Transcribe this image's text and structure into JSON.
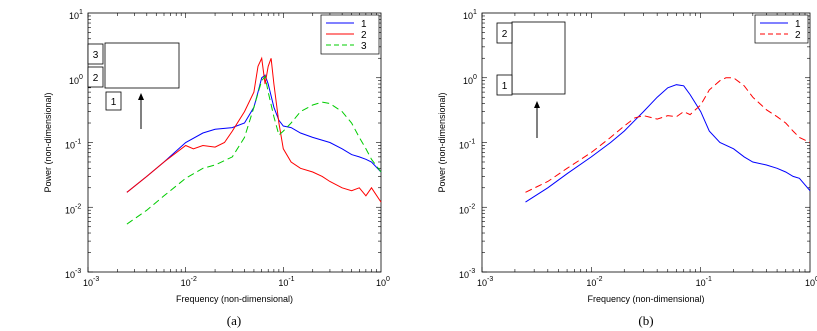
{
  "chart_data": [
    {
      "type": "line",
      "panel_label": "(a)",
      "xlabel": "Frequency (non-dimensional)",
      "ylabel": "Power (non-dimensional)",
      "xscale": "log",
      "yscale": "log",
      "xlim": [
        0.001,
        1
      ],
      "ylim": [
        0.001,
        10
      ],
      "x_ticks": [
        "10",
        "10",
        "10",
        "10"
      ],
      "x_tick_exponents": [
        "-3",
        "-2",
        "-1",
        "0"
      ],
      "y_ticks": [
        "10",
        "10",
        "10",
        "10",
        "10"
      ],
      "y_tick_exponents": [
        "-3",
        "-2",
        "-1",
        "0",
        "1"
      ],
      "legend_position": "top-right",
      "series": [
        {
          "name": "1",
          "color": "#0000ff",
          "style": "solid",
          "x": [
            0.0025,
            0.004,
            0.006,
            0.01,
            0.015,
            0.02,
            0.03,
            0.04,
            0.05,
            0.055,
            0.06,
            0.065,
            0.07,
            0.08,
            0.09,
            0.1,
            0.12,
            0.15,
            0.2,
            0.3,
            0.4,
            0.5,
            0.6,
            0.7,
            0.8,
            1.0
          ],
          "y": [
            0.017,
            0.03,
            0.05,
            0.1,
            0.14,
            0.16,
            0.17,
            0.2,
            0.35,
            0.6,
            1.0,
            1.1,
            0.8,
            0.35,
            0.22,
            0.18,
            0.17,
            0.14,
            0.12,
            0.1,
            0.08,
            0.065,
            0.06,
            0.055,
            0.05,
            0.035
          ]
        },
        {
          "name": "2",
          "color": "#ff0000",
          "style": "solid",
          "x": [
            0.0025,
            0.004,
            0.006,
            0.01,
            0.012,
            0.015,
            0.02,
            0.025,
            0.03,
            0.04,
            0.05,
            0.055,
            0.06,
            0.065,
            0.07,
            0.075,
            0.08,
            0.09,
            0.1,
            0.12,
            0.15,
            0.2,
            0.25,
            0.3,
            0.4,
            0.5,
            0.6,
            0.7,
            0.8,
            1.0
          ],
          "y": [
            0.017,
            0.03,
            0.05,
            0.09,
            0.08,
            0.09,
            0.085,
            0.1,
            0.15,
            0.3,
            0.6,
            1.5,
            2.0,
            0.8,
            1.5,
            2.0,
            0.8,
            0.2,
            0.08,
            0.05,
            0.04,
            0.035,
            0.03,
            0.025,
            0.02,
            0.018,
            0.02,
            0.015,
            0.02,
            0.012
          ]
        },
        {
          "name": "3",
          "color": "#00cc00",
          "style": "dashed",
          "x": [
            0.0025,
            0.004,
            0.006,
            0.01,
            0.015,
            0.02,
            0.03,
            0.04,
            0.05,
            0.06,
            0.065,
            0.07,
            0.08,
            0.09,
            0.1,
            0.12,
            0.15,
            0.2,
            0.25,
            0.3,
            0.4,
            0.5,
            0.6,
            0.7,
            0.8,
            1.0
          ],
          "y": [
            0.0055,
            0.009,
            0.015,
            0.028,
            0.04,
            0.045,
            0.06,
            0.12,
            0.35,
            0.9,
            1.05,
            0.6,
            0.25,
            0.13,
            0.15,
            0.2,
            0.3,
            0.38,
            0.42,
            0.4,
            0.3,
            0.2,
            0.12,
            0.08,
            0.055,
            0.035
          ]
        }
      ],
      "inset": {
        "boxes": [
          "3",
          "2",
          "1"
        ],
        "arrow": true
      }
    },
    {
      "type": "line",
      "panel_label": "(b)",
      "xlabel": "Frequency (non-dimensional)",
      "ylabel": "Power (non-dimensional)",
      "xscale": "log",
      "yscale": "log",
      "xlim": [
        0.001,
        1
      ],
      "ylim": [
        0.001,
        10
      ],
      "x_ticks": [
        "10",
        "10",
        "10",
        "10"
      ],
      "x_tick_exponents": [
        "-3",
        "-2",
        "-1",
        "0"
      ],
      "y_ticks": [
        "10",
        "10",
        "10",
        "10",
        "10"
      ],
      "y_tick_exponents": [
        "-3",
        "-2",
        "-1",
        "0",
        "1"
      ],
      "legend_position": "top-right",
      "series": [
        {
          "name": "1",
          "color": "#0000ff",
          "style": "solid",
          "x": [
            0.0025,
            0.004,
            0.006,
            0.01,
            0.015,
            0.02,
            0.03,
            0.04,
            0.05,
            0.06,
            0.07,
            0.08,
            0.1,
            0.12,
            0.15,
            0.2,
            0.25,
            0.3,
            0.4,
            0.5,
            0.6,
            0.7,
            0.8,
            1.0
          ],
          "y": [
            0.012,
            0.02,
            0.033,
            0.06,
            0.1,
            0.15,
            0.3,
            0.5,
            0.7,
            0.78,
            0.75,
            0.55,
            0.3,
            0.15,
            0.1,
            0.08,
            0.06,
            0.05,
            0.045,
            0.04,
            0.035,
            0.03,
            0.028,
            0.018
          ]
        },
        {
          "name": "2",
          "color": "#ff0000",
          "style": "dashed",
          "x": [
            0.0025,
            0.004,
            0.006,
            0.01,
            0.015,
            0.02,
            0.025,
            0.03,
            0.04,
            0.05,
            0.06,
            0.07,
            0.08,
            0.1,
            0.12,
            0.15,
            0.17,
            0.2,
            0.25,
            0.3,
            0.4,
            0.5,
            0.6,
            0.7,
            0.8,
            1.0
          ],
          "y": [
            0.017,
            0.025,
            0.04,
            0.07,
            0.12,
            0.18,
            0.24,
            0.26,
            0.23,
            0.26,
            0.25,
            0.3,
            0.27,
            0.38,
            0.65,
            0.9,
            1.0,
            1.0,
            0.75,
            0.5,
            0.32,
            0.25,
            0.2,
            0.15,
            0.12,
            0.1
          ]
        }
      ],
      "inset": {
        "boxes": [
          "2",
          "1"
        ],
        "arrow": true
      }
    }
  ]
}
